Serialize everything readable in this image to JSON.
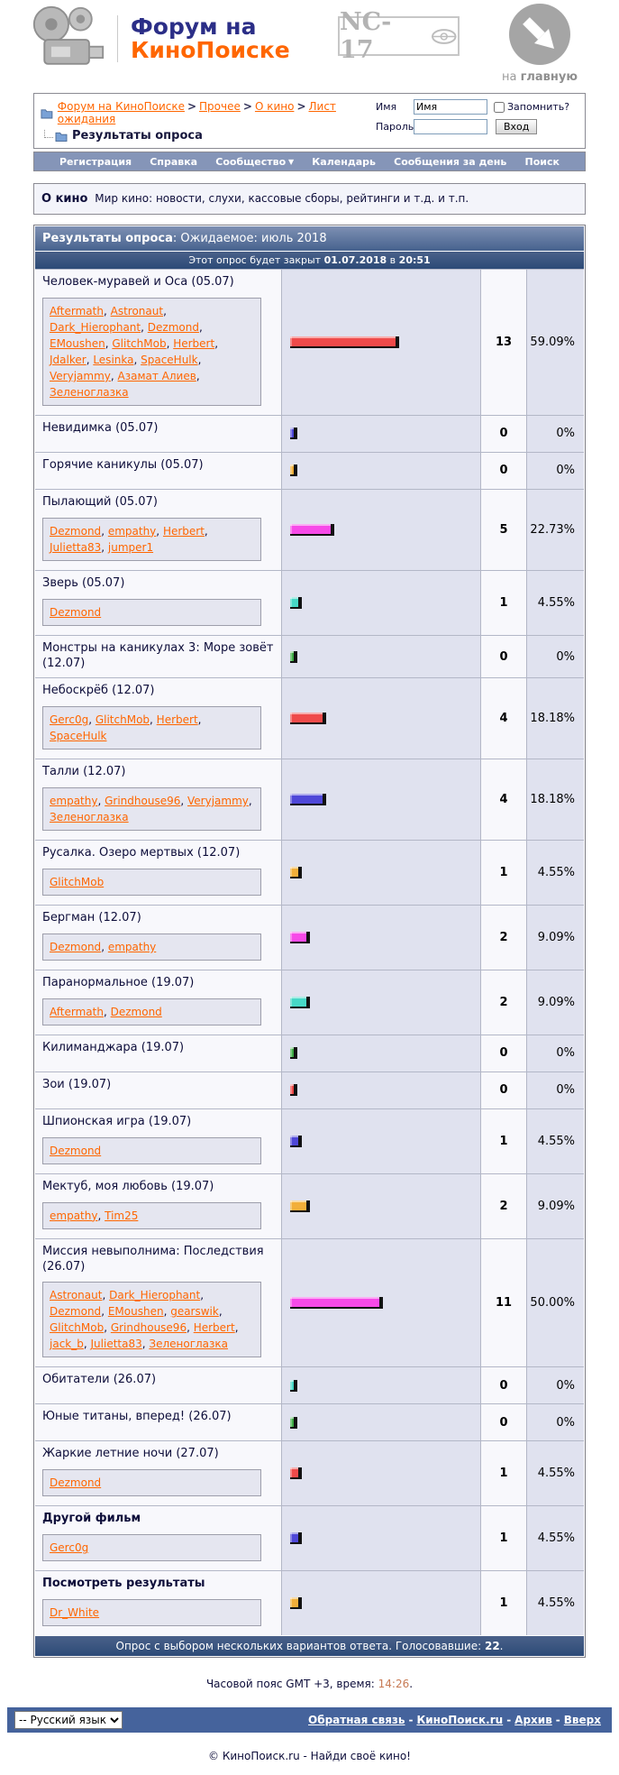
{
  "header": {
    "logo_line1": "Форум на",
    "logo_line2": "КиноПоиске",
    "rating_badge": "NC-17",
    "home_prefix": "на ",
    "home_bold": "главную"
  },
  "breadcrumb": {
    "links": [
      "Форум на КиноПоиске",
      "Прочее",
      "О кино",
      "Лист ожидания"
    ],
    "separator": ">",
    "current": "Результаты опроса"
  },
  "login": {
    "name_label": "Имя",
    "name_value": "Имя",
    "password_label": "Пароль",
    "remember_label": "Запомнить?",
    "submit_label": "Вход"
  },
  "navbar": {
    "dropdown_arrow": "▼",
    "items": [
      {
        "label": "Регистрация",
        "has_dropdown": false
      },
      {
        "label": "Справка",
        "has_dropdown": false
      },
      {
        "label": "Сообщество",
        "has_dropdown": true
      },
      {
        "label": "Календарь",
        "has_dropdown": false
      },
      {
        "label": "Сообщения за день",
        "has_dropdown": false
      },
      {
        "label": "Поиск",
        "has_dropdown": false
      }
    ]
  },
  "forum_info": {
    "name": "О кино",
    "description": "Мир кино: новости, слухи, кассовые сборы, рейтинги и т.д. и т.п."
  },
  "poll": {
    "title_label": "Результаты опроса",
    "title_colon": ": ",
    "title_value": "Ожидаемое: июль 2018",
    "close_prefix": "Этот опрос будет закрыт ",
    "close_date": "01.07.2018",
    "close_connector": " в ",
    "close_time": "20:51",
    "footer_prefix": "Опрос с выбором нескольких вариантов ответа. Голосовавшие: ",
    "voters_total": "22",
    "footer_suffix": ".",
    "options": [
      {
        "title": "Человек-муравей и Оса (05.07)",
        "bold": false,
        "voters": [
          "Aftermath",
          "Astronaut",
          "Dark_Hierophant",
          "Dezmond",
          "EMoushen",
          "GlitchMob",
          "Herbert",
          "Jdalker",
          "Lesinka",
          "SpaceHulk",
          "Veryjammy",
          "Азамат Алиев",
          "Зеленоглазка"
        ],
        "votes": 13,
        "percent": "59.09%",
        "color": "red"
      },
      {
        "title": "Невидимка (05.07)",
        "bold": false,
        "voters": [],
        "votes": 0,
        "percent": "0%",
        "color": "blue"
      },
      {
        "title": "Горячие каникулы (05.07)",
        "bold": false,
        "voters": [],
        "votes": 0,
        "percent": "0%",
        "color": "yellow"
      },
      {
        "title": "Пылающий (05.07)",
        "bold": false,
        "voters": [
          "Dezmond",
          "empathy",
          "Herbert",
          "Julietta83",
          "jumper1"
        ],
        "votes": 5,
        "percent": "22.73%",
        "color": "magenta"
      },
      {
        "title": "Зверь (05.07)",
        "bold": false,
        "voters": [
          "Dezmond"
        ],
        "votes": 1,
        "percent": "4.55%",
        "color": "teal"
      },
      {
        "title": "Монстры на каникулах 3: Море зовёт (12.07)",
        "bold": false,
        "voters": [],
        "votes": 0,
        "percent": "0%",
        "color": "green"
      },
      {
        "title": "Небоскрёб (12.07)",
        "bold": false,
        "voters": [
          "Gerc0g",
          "GlitchMob",
          "Herbert",
          "SpaceHulk"
        ],
        "votes": 4,
        "percent": "18.18%",
        "color": "red"
      },
      {
        "title": "Талли (12.07)",
        "bold": false,
        "voters": [
          "empathy",
          "Grindhouse96",
          "Veryjammy",
          "Зеленоглазка"
        ],
        "votes": 4,
        "percent": "18.18%",
        "color": "blue"
      },
      {
        "title": "Русалка. Озеро мертвых (12.07)",
        "bold": false,
        "voters": [
          "GlitchMob"
        ],
        "votes": 1,
        "percent": "4.55%",
        "color": "yellow"
      },
      {
        "title": "Бергман (12.07)",
        "bold": false,
        "voters": [
          "Dezmond",
          "empathy"
        ],
        "votes": 2,
        "percent": "9.09%",
        "color": "magenta"
      },
      {
        "title": "Паранормальное (19.07)",
        "bold": false,
        "voters": [
          "Aftermath",
          "Dezmond"
        ],
        "votes": 2,
        "percent": "9.09%",
        "color": "teal"
      },
      {
        "title": "Килиманджара (19.07)",
        "bold": false,
        "voters": [],
        "votes": 0,
        "percent": "0%",
        "color": "green"
      },
      {
        "title": "Зои (19.07)",
        "bold": false,
        "voters": [],
        "votes": 0,
        "percent": "0%",
        "color": "red"
      },
      {
        "title": "Шпионская игра (19.07)",
        "bold": false,
        "voters": [
          "Dezmond"
        ],
        "votes": 1,
        "percent": "4.55%",
        "color": "blue"
      },
      {
        "title": "Мектуб, моя любовь (19.07)",
        "bold": false,
        "voters": [
          "empathy",
          "Tim25"
        ],
        "votes": 2,
        "percent": "9.09%",
        "color": "yellow"
      },
      {
        "title": "Миссия невыполнима: Последствия (26.07)",
        "bold": false,
        "voters": [
          "Astronaut",
          "Dark_Hierophant",
          "Dezmond",
          "EMoushen",
          "gearswik",
          "GlitchMob",
          "Grindhouse96",
          "Herbert",
          "jack_b",
          "Julietta83",
          "Зеленоглазка"
        ],
        "votes": 11,
        "percent": "50.00%",
        "color": "magenta"
      },
      {
        "title": "Обитатели (26.07)",
        "bold": false,
        "voters": [],
        "votes": 0,
        "percent": "0%",
        "color": "teal"
      },
      {
        "title": "Юные титаны, вперед! (26.07)",
        "bold": false,
        "voters": [],
        "votes": 0,
        "percent": "0%",
        "color": "green"
      },
      {
        "title": "Жаркие летние ночи (27.07)",
        "bold": false,
        "voters": [
          "Dezmond"
        ],
        "votes": 1,
        "percent": "4.55%",
        "color": "red"
      },
      {
        "title": "Другой фильм",
        "bold": true,
        "voters": [
          "Gerc0g"
        ],
        "votes": 1,
        "percent": "4.55%",
        "color": "blue"
      },
      {
        "title": "Посмотреть результаты",
        "bold": true,
        "voters": [
          "Dr_White"
        ],
        "votes": 1,
        "percent": "4.55%",
        "color": "yellow"
      }
    ]
  },
  "colors": {
    "bars": {
      "red": "#ef4a4a",
      "blue": "#4f48d8",
      "yellow": "#f2af3a",
      "magenta": "#f74ae8",
      "teal": "#47d8c7",
      "green": "#3fae46"
    },
    "orange_link": "#ff6600",
    "navbar_bg": "#8595b8",
    "footer_bar_bg": "#45639c"
  },
  "footer": {
    "timezone_prefix": "Часовой пояс GMT +3, время: ",
    "time": "14:26",
    "timezone_suffix": ".",
    "language_selector": "-- Русский язык",
    "links": [
      "Обратная связь",
      "КиноПоиск.ru",
      "Архив",
      "Вверх"
    ],
    "links_separator": "-",
    "copyright": "© КиноПоиск.ru - Найди своё кино!"
  }
}
